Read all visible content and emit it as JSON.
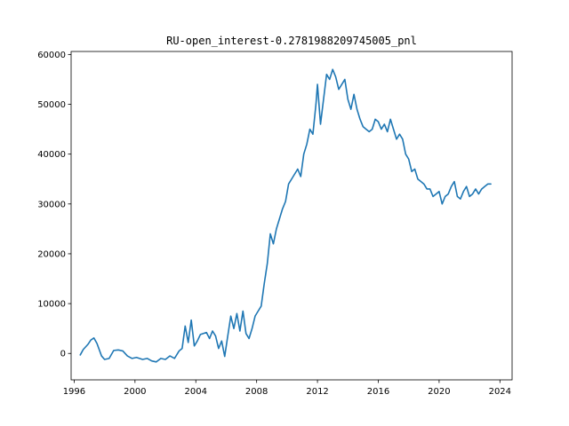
{
  "chart_data": {
    "type": "line",
    "title": "RU-open_interest-0.2781988209745005_pnl",
    "xlabel": "",
    "ylabel": "",
    "xlim": [
      1995.8,
      2024.8
    ],
    "ylim": [
      -5300,
      60600
    ],
    "xticks": [
      1996,
      2000,
      2004,
      2008,
      2012,
      2016,
      2020,
      2024
    ],
    "yticks": [
      0,
      10000,
      20000,
      30000,
      40000,
      50000,
      60000
    ],
    "grid": false,
    "legend": "none",
    "colors": {
      "line": "#1f77b4",
      "axes": "#000000",
      "background": "#ffffff"
    },
    "series": [
      {
        "x": [
          1996.4,
          1996.6,
          1996.9,
          1997.1,
          1997.3,
          1997.5,
          1997.8,
          1998.0,
          1998.3,
          1998.6,
          1998.9,
          1999.2,
          1999.5,
          1999.8,
          2000.1,
          2000.5,
          2000.8,
          2001.1,
          2001.4,
          2001.7,
          2002.0,
          2002.3,
          2002.6,
          2002.9,
          2003.1,
          2003.3,
          2003.5,
          2003.7,
          2003.9,
          2004.1,
          2004.3,
          2004.5,
          2004.7,
          2004.9,
          2005.1,
          2005.3,
          2005.5,
          2005.7,
          2005.9,
          2006.1,
          2006.3,
          2006.5,
          2006.7,
          2006.9,
          2007.1,
          2007.3,
          2007.5,
          2007.7,
          2007.9,
          2008.1,
          2008.3,
          2008.5,
          2008.7,
          2008.9,
          2009.1,
          2009.3,
          2009.5,
          2009.7,
          2009.9,
          2010.1,
          2010.3,
          2010.5,
          2010.7,
          2010.9,
          2011.1,
          2011.3,
          2011.5,
          2011.7,
          2011.9,
          2012.0,
          2012.2,
          2012.4,
          2012.6,
          2012.8,
          2013.0,
          2013.2,
          2013.4,
          2013.6,
          2013.8,
          2014.0,
          2014.2,
          2014.4,
          2014.6,
          2014.8,
          2015.0,
          2015.2,
          2015.4,
          2015.6,
          2015.8,
          2016.0,
          2016.2,
          2016.4,
          2016.6,
          2016.8,
          2017.0,
          2017.2,
          2017.4,
          2017.6,
          2017.8,
          2018.0,
          2018.2,
          2018.4,
          2018.6,
          2018.8,
          2019.0,
          2019.2,
          2019.4,
          2019.6,
          2019.8,
          2020.0,
          2020.2,
          2020.4,
          2020.6,
          2020.8,
          2021.0,
          2021.2,
          2021.4,
          2021.6,
          2021.8,
          2022.0,
          2022.2,
          2022.4,
          2022.6,
          2022.8,
          2023.0,
          2023.2,
          2023.4
        ],
        "y": [
          -300,
          800,
          1800,
          2700,
          3100,
          2000,
          -500,
          -1200,
          -1000,
          600,
          700,
          500,
          -500,
          -1000,
          -800,
          -1200,
          -1000,
          -1500,
          -1700,
          -1000,
          -1200,
          -500,
          -1000,
          500,
          1000,
          5500,
          2200,
          6700,
          1500,
          2500,
          3800,
          4000,
          4200,
          3000,
          4500,
          3500,
          1000,
          2500,
          -600,
          3500,
          7500,
          5000,
          8000,
          4500,
          8500,
          4000,
          3000,
          5000,
          7500,
          8500,
          9500,
          14000,
          18000,
          24000,
          22000,
          25000,
          27000,
          29000,
          30500,
          34000,
          35000,
          36000,
          37000,
          35500,
          40000,
          42000,
          45000,
          44000,
          50000,
          54000,
          46000,
          51000,
          56000,
          55000,
          57000,
          55500,
          53000,
          54000,
          55000,
          51000,
          49000,
          52000,
          49000,
          47000,
          45500,
          45000,
          44500,
          45000,
          47000,
          46500,
          45000,
          46000,
          44500,
          47000,
          45000,
          43000,
          44000,
          43000,
          40000,
          39000,
          36500,
          37000,
          35000,
          34500,
          34000,
          33000,
          33000,
          31500,
          32000,
          32500,
          30000,
          31500,
          32000,
          33500,
          34500,
          31500,
          31000,
          32500,
          33500,
          31500,
          32000,
          33000,
          32000,
          33000,
          33500,
          34000,
          34000
        ]
      }
    ]
  }
}
